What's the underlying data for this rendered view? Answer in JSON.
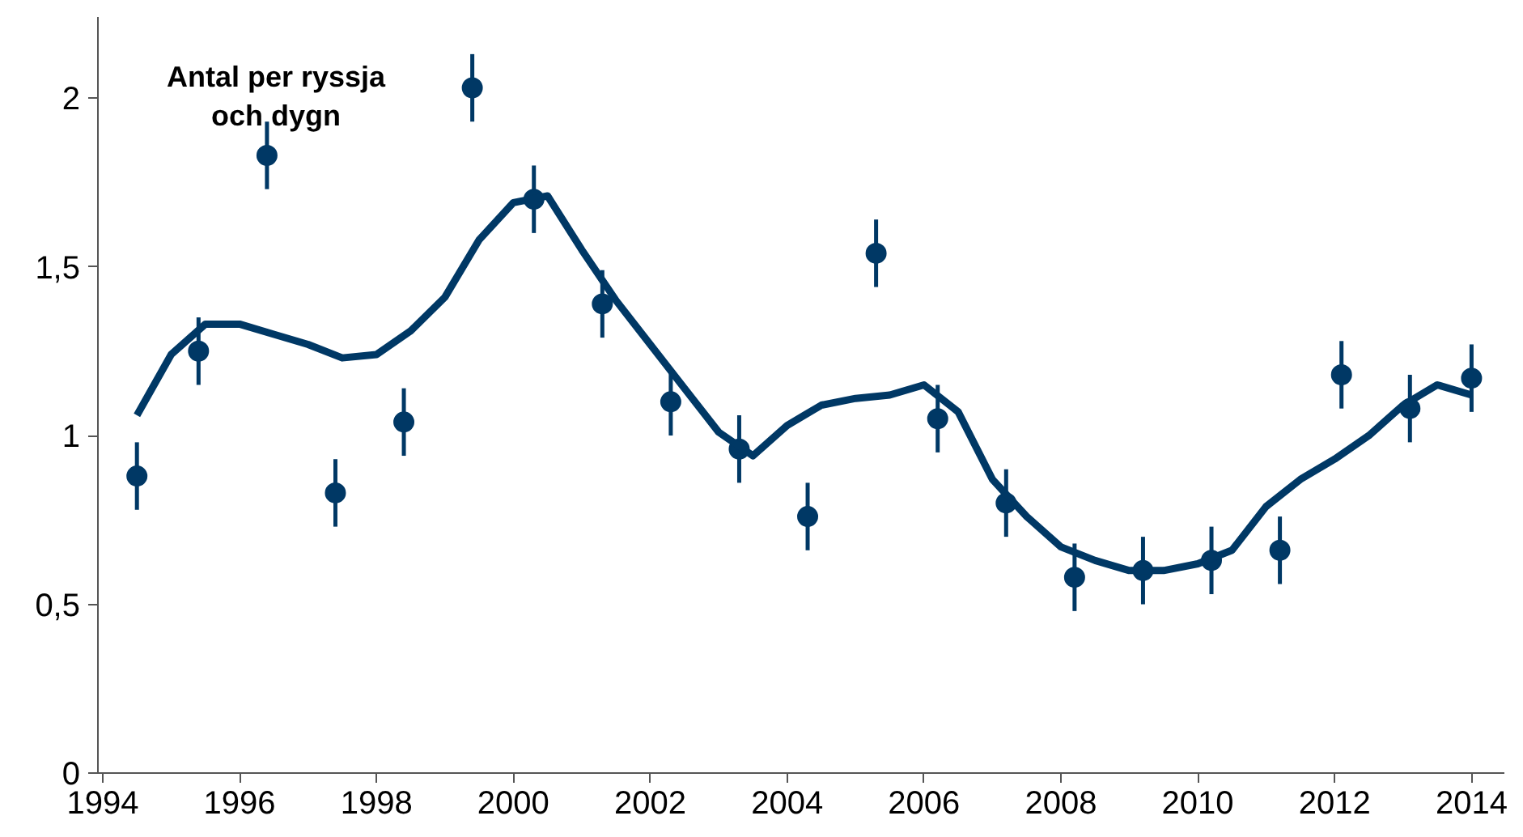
{
  "chart_data": {
    "type": "scatter",
    "annotations": [
      "Antal per ryssja\noch dygn"
    ],
    "xlim": [
      1993.93,
      2014.48
    ],
    "ylim": [
      0,
      2.24
    ],
    "xticks": [
      1994,
      1996,
      1998,
      2000,
      2002,
      2004,
      2006,
      2008,
      2010,
      2012,
      2014
    ],
    "yticks": [
      0,
      {
        "value": 0.5,
        "label": "0,5"
      },
      1,
      {
        "value": 1.5,
        "label": "1,5"
      },
      2
    ],
    "grid": false,
    "series": [
      {
        "marker": "circle",
        "color": "#003865",
        "x": [
          1994.5,
          1995.4,
          1996.4,
          1997.4,
          1998.4,
          1999.4,
          2000.3,
          2001.3,
          2002.3,
          2003.3,
          2004.3,
          2005.3,
          2006.2,
          2007.2,
          2008.2,
          2009.2,
          2010.2,
          2011.2,
          2012.1,
          2013.1,
          2014.0
        ],
        "values": [
          0.88,
          1.25,
          1.83,
          0.83,
          1.04,
          2.03,
          1.7,
          1.39,
          1.1,
          0.96,
          0.76,
          1.54,
          1.05,
          0.8,
          0.58,
          0.6,
          0.63,
          0.66,
          1.18,
          1.08,
          1.17
        ],
        "errors": [
          0.1,
          0.1,
          0.1,
          0.1,
          0.1,
          0.1,
          0.1,
          0.1,
          0.1,
          0.1,
          0.1,
          0.1,
          0.1,
          0.1,
          0.1,
          0.1,
          0.1,
          0.1,
          0.1,
          0.1,
          0.1
        ]
      },
      {
        "type": "line",
        "marker": "none",
        "color": "#003865",
        "line_style": "solid",
        "x": [
          1994.5,
          1995,
          1995.5,
          1996,
          1996.5,
          1997,
          1997.5,
          1998,
          1998.5,
          1999,
          1999.5,
          2000,
          2000.5,
          2001,
          2001.5,
          2002,
          2002.5,
          2003,
          2003.5,
          2004,
          2004.5,
          2005,
          2005.5,
          2006,
          2006.5,
          2007,
          2007.5,
          2008,
          2008.5,
          2009,
          2009.5,
          2010,
          2010.5,
          2011,
          2011.5,
          2012,
          2012.5,
          2013,
          2013.5,
          2014
        ],
        "values": [
          1.06,
          1.24,
          1.33,
          1.33,
          1.3,
          1.27,
          1.23,
          1.24,
          1.31,
          1.41,
          1.58,
          1.69,
          1.71,
          1.55,
          1.4,
          1.27,
          1.14,
          1.01,
          0.94,
          1.03,
          1.09,
          1.11,
          1.12,
          1.15,
          1.07,
          0.87,
          0.76,
          0.67,
          0.63,
          0.6,
          0.6,
          0.62,
          0.66,
          0.79,
          0.87,
          0.93,
          1.0,
          1.09,
          1.15,
          1.12
        ]
      }
    ]
  }
}
